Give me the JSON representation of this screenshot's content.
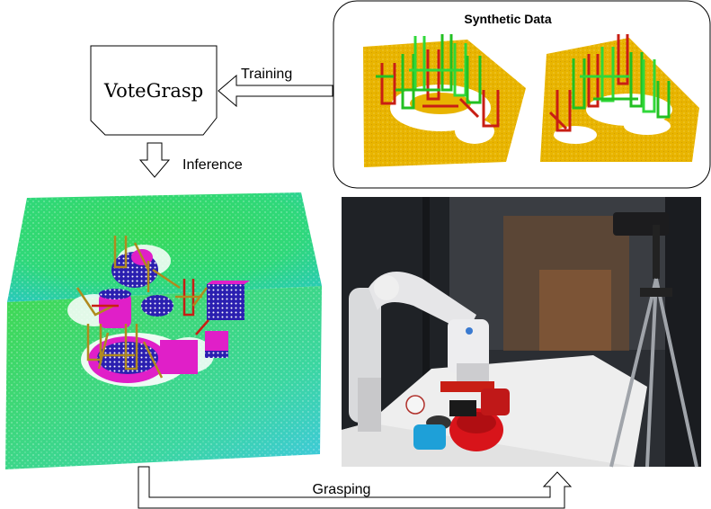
{
  "diagram": {
    "model_label": "VoteGrasp",
    "training_label": "Training",
    "inference_label": "Inference",
    "grasping_label": "Grasping",
    "synthetic_title": "Synthetic Data",
    "colors": {
      "outline": "#000000",
      "ground_yellow": "#e8b400",
      "point_cloud_green": "#3ddc4a",
      "point_cloud_cyan": "#2fd3c8",
      "object_magenta": "#e01fc8",
      "object_blue": "#2a1fb0",
      "grasp_red": "#c81e14",
      "grasp_green": "#22c022",
      "grasp_olive": "#b08a1e"
    }
  }
}
